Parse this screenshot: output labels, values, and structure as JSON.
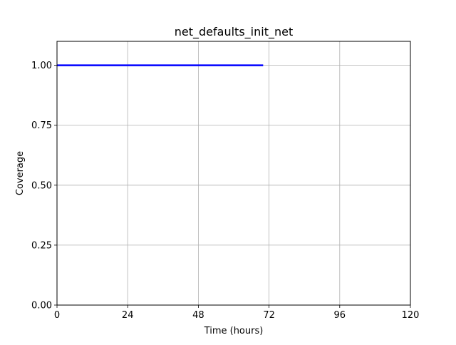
{
  "chart_data": {
    "type": "line",
    "title": "net_defaults_init_net",
    "xlabel": "Time (hours)",
    "ylabel": "Coverage",
    "xlim": [
      0,
      120
    ],
    "ylim": [
      0,
      1.1
    ],
    "xticks": [
      0,
      24,
      48,
      72,
      96,
      120
    ],
    "xtick_labels": [
      "0",
      "24",
      "48",
      "72",
      "96",
      "120"
    ],
    "yticks": [
      0,
      0.25,
      0.5,
      0.75,
      1.0
    ],
    "ytick_labels": [
      "0.00",
      "0.25",
      "0.50",
      "0.75",
      "1.00"
    ],
    "grid": true,
    "series": [
      {
        "color": "#0000ff",
        "x": [
          0,
          70
        ],
        "y": [
          1.0,
          1.0
        ]
      }
    ]
  }
}
